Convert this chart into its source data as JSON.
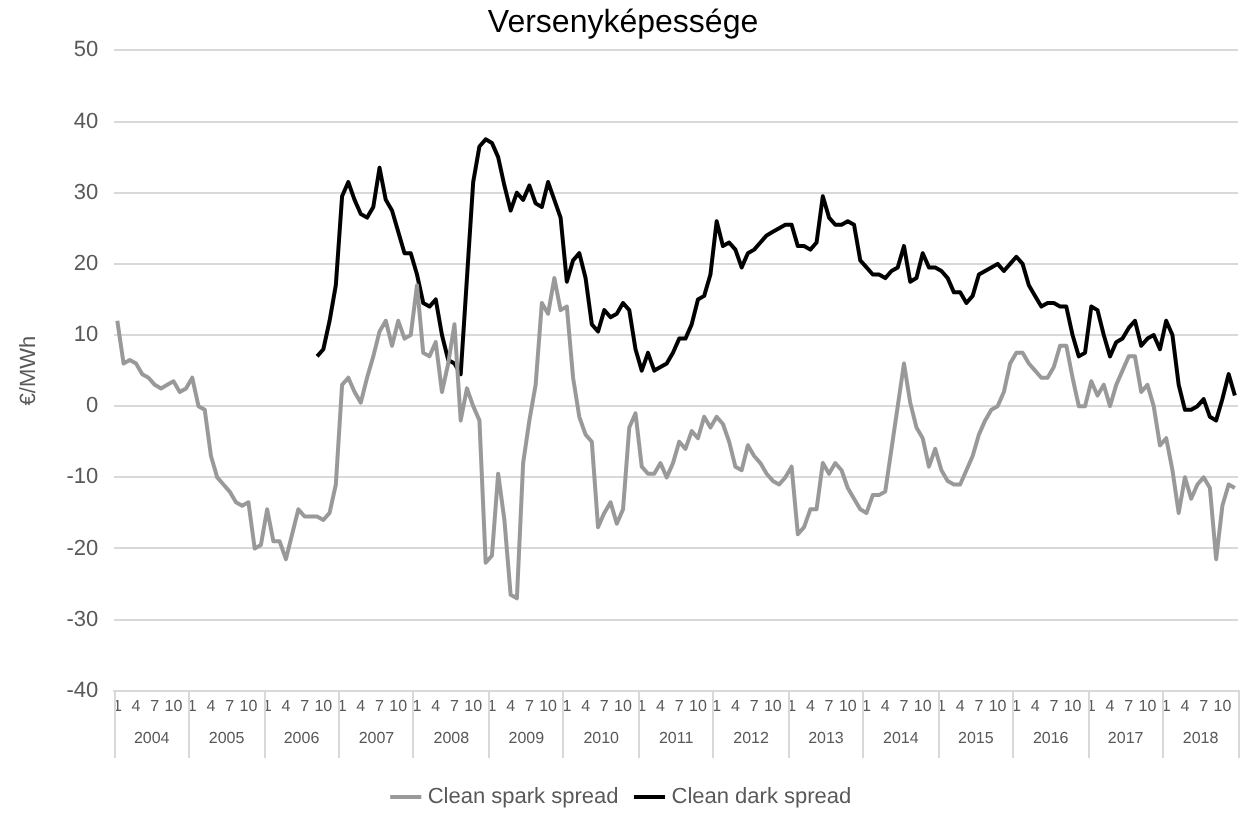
{
  "chart_data": {
    "type": "line",
    "title": "Versenyképessége",
    "ylabel": "€/MWh",
    "categories": [
      "1",
      null,
      null,
      "4",
      null,
      null,
      "7",
      null,
      null,
      "10",
      null,
      null,
      "1",
      null,
      null,
      "4",
      null,
      null,
      "7",
      null,
      null,
      "10",
      null,
      null,
      "1",
      null,
      null,
      "4",
      null,
      null,
      "7",
      null,
      null,
      "10",
      null,
      null,
      "1",
      null,
      null,
      "4",
      null,
      null,
      "7",
      null,
      null,
      "10",
      null,
      null,
      "1",
      null,
      null,
      "4",
      null,
      null,
      "7",
      null,
      null,
      "10",
      null,
      null,
      "1",
      null,
      null,
      "4",
      null,
      null,
      "7",
      null,
      null,
      "10",
      null,
      null,
      "1",
      null,
      null,
      "4",
      null,
      null,
      "7",
      null,
      null,
      "10",
      null,
      null,
      "1",
      null,
      null,
      "4",
      null,
      null,
      "7",
      null,
      null,
      "10",
      null,
      null,
      "1",
      null,
      null,
      "4",
      null,
      null,
      "7",
      null,
      null,
      "10",
      null,
      null,
      "1",
      null,
      null,
      "4",
      null,
      null,
      "7",
      null,
      null,
      "10",
      null,
      null,
      "1",
      null,
      null,
      "4",
      null,
      null,
      "7",
      null,
      null,
      "10",
      null,
      null,
      "1",
      null,
      null,
      "4",
      null,
      null,
      "7",
      null,
      null,
      "10",
      null,
      null,
      "1",
      null,
      null,
      "4",
      null,
      null,
      "7",
      null,
      null,
      "10",
      null,
      null,
      "1",
      null,
      null,
      "4",
      null,
      null,
      "7",
      null,
      null,
      "10",
      null,
      null,
      "1",
      null,
      null,
      "4",
      null,
      null,
      "7",
      null,
      null,
      "10",
      null,
      null
    ],
    "series": [
      {
        "name": "Clean spark spread",
        "color": "#999999",
        "values": [
          12,
          6,
          6.5,
          6,
          4.5,
          4,
          3,
          2.5,
          3,
          3.5,
          2,
          2.5,
          4,
          0,
          -0.5,
          -7,
          -10,
          -11,
          -12,
          -13.5,
          -14,
          -13.5,
          -20,
          -19.5,
          -14.5,
          -19,
          -19,
          -21.5,
          -18,
          -14.5,
          -15.5,
          -15.5,
          -15.5,
          -16,
          -15,
          -11,
          3,
          4,
          2,
          0.5,
          4,
          7,
          10.5,
          12,
          8.5,
          12,
          9.5,
          10,
          17,
          7.5,
          7,
          9,
          2,
          6,
          11.5,
          -2,
          2.5,
          0,
          -2,
          -22,
          -21,
          -9.5,
          -16,
          -26.5,
          -27,
          -8,
          -2,
          3,
          14.5,
          13,
          18,
          13.5,
          14,
          4,
          -1.5,
          -4,
          -5,
          -17,
          -15,
          -13.5,
          -16.5,
          -14.5,
          -3,
          -1,
          -8.5,
          -9.5,
          -9.5,
          -8,
          -10,
          -8,
          -5,
          -6,
          -3.5,
          -4.5,
          -1.5,
          -3,
          -1.5,
          -2.5,
          -5,
          -8.5,
          -9,
          -5.5,
          -7,
          -8,
          -9.5,
          -10.5,
          -11,
          -10,
          -8.5,
          -18,
          -17,
          -14.5,
          -14.5,
          -8,
          -9.5,
          -8,
          -9,
          -11.5,
          -13,
          -14.5,
          -15,
          -12.5,
          -12.5,
          -12,
          -6,
          0,
          6,
          0.5,
          -3,
          -4.5,
          -8.5,
          -6,
          -9,
          -10.5,
          -11,
          -11,
          -9,
          -7,
          -4,
          -2,
          -0.5,
          0,
          2,
          6,
          7.5,
          7.5,
          6,
          5,
          4,
          4,
          5.5,
          8.5,
          8.5,
          4,
          0,
          0,
          3.5,
          1.5,
          3,
          0,
          3,
          5,
          7,
          7,
          2,
          3,
          0,
          -5.5,
          -4.5,
          -9,
          -15,
          -10,
          -13,
          -11,
          -10,
          -11.5,
          -21.5,
          -14,
          -11,
          -11.5
        ]
      },
      {
        "name": "Clean dark spread",
        "color": "#000000",
        "values": [
          null,
          null,
          null,
          null,
          null,
          null,
          null,
          null,
          null,
          null,
          null,
          null,
          null,
          null,
          null,
          null,
          null,
          null,
          null,
          null,
          null,
          null,
          null,
          null,
          null,
          null,
          null,
          null,
          null,
          null,
          null,
          null,
          7,
          8,
          12,
          17,
          29.5,
          31.5,
          29,
          27,
          26.5,
          28,
          33.5,
          29,
          27.5,
          24.5,
          21.5,
          21.5,
          18.5,
          14.5,
          14,
          15,
          10,
          6.5,
          6,
          4.5,
          18,
          31.5,
          36.5,
          37.5,
          37,
          35,
          31,
          27.5,
          30,
          29,
          31,
          28.5,
          28,
          31.5,
          29,
          26.5,
          17.5,
          20.5,
          21.5,
          18,
          11.5,
          10.5,
          13.5,
          12.5,
          13,
          14.5,
          13.5,
          8,
          5,
          7.5,
          5,
          5.5,
          6,
          7.5,
          9.5,
          9.5,
          11.5,
          15,
          15.5,
          18.5,
          26,
          22.5,
          23,
          22,
          19.5,
          21.5,
          22,
          23,
          24,
          24.5,
          25,
          25.5,
          25.5,
          22.5,
          22.5,
          22,
          23,
          29.5,
          26.5,
          25.5,
          25.5,
          26,
          25.5,
          20.5,
          19.5,
          18.5,
          18.5,
          18,
          19,
          19.5,
          22.5,
          17.5,
          18,
          21.5,
          19.5,
          19.5,
          19,
          18,
          16,
          16,
          14.5,
          15.5,
          18.5,
          19,
          19.5,
          20,
          19,
          20,
          21,
          20,
          17,
          15.5,
          14,
          14.5,
          14.5,
          14,
          14,
          10,
          7,
          7.5,
          14,
          13.5,
          10,
          7,
          9,
          9.5,
          11,
          12,
          8.5,
          9.5,
          10,
          8,
          12,
          10,
          3,
          -0.5,
          -0.5,
          0,
          1,
          -1.5,
          -2,
          1,
          4.5,
          1.5
        ]
      }
    ],
    "annotations": [
      "2004",
      "2005",
      "2006",
      "2007",
      "2008",
      "2009",
      "2010",
      "2011",
      "2012",
      "2013",
      "2014",
      "2015",
      "2016",
      "2017",
      "2018"
    ],
    "ylim": [
      -40,
      50
    ],
    "yticks": [
      -40,
      -30,
      -20,
      -10,
      0,
      10,
      20,
      30,
      40,
      50
    ],
    "grid": "y",
    "legend": "bottom",
    "line_style": "solid",
    "marker": "none"
  }
}
